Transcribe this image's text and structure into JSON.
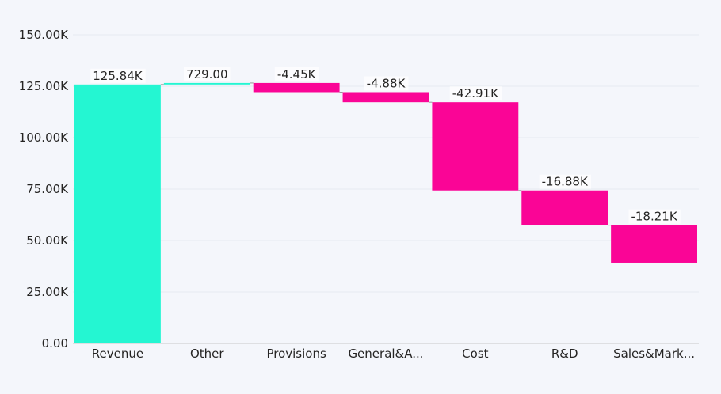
{
  "chart_data": {
    "type": "waterfall",
    "categories": [
      "Revenue",
      "Other",
      "Provisions",
      "General&A...",
      "Cost",
      "R&D",
      "Sales&Mark..."
    ],
    "values": [
      125840,
      729,
      -4450,
      -4880,
      -42910,
      -16880,
      -18210
    ],
    "data_labels": [
      "125.84K",
      "729.00",
      "-4.45K",
      "-4.88K",
      "-42.91K",
      "-16.88K",
      "-18.21K"
    ],
    "ylim": [
      0,
      150000
    ],
    "y_ticks": [
      0,
      25000,
      50000,
      75000,
      100000,
      125000,
      150000
    ],
    "y_tick_labels": [
      "0.00",
      "25.00K",
      "50.00K",
      "75.00K",
      "100.00K",
      "125.00K",
      "150.00K"
    ],
    "grid": true,
    "colors": {
      "increase": "#24f6d2",
      "decrease": "#fa0596",
      "background": "#f4f6fb",
      "grid": "#e6e9f0"
    }
  }
}
